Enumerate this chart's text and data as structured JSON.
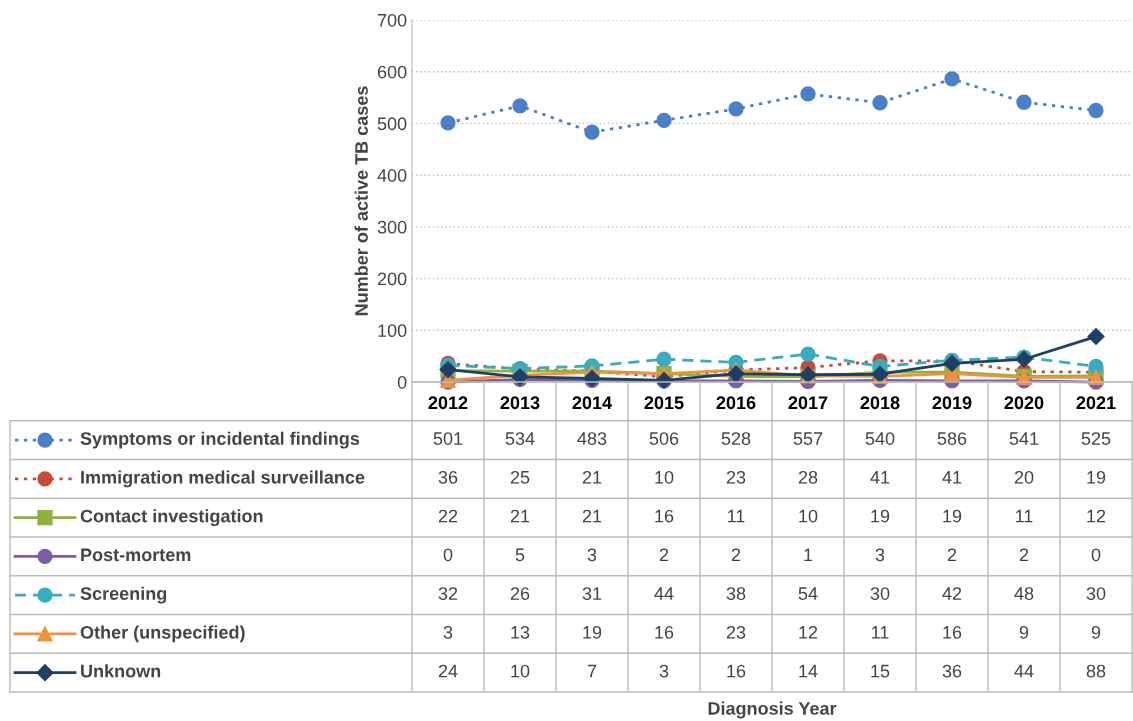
{
  "chart_data": {
    "type": "line",
    "annotations": [
      "Diagnosis Year"
    ],
    "ylabel": "Number of active TB cases",
    "categories": [
      "2012",
      "2013",
      "2014",
      "2015",
      "2016",
      "2017",
      "2018",
      "2019",
      "2020",
      "2021"
    ],
    "ylim": [
      0,
      700
    ],
    "yticks": [
      0,
      100,
      200,
      300,
      400,
      500,
      600,
      700
    ],
    "grid": "y",
    "legend": "bottom",
    "data_labels": true,
    "series": [
      {
        "name": "Symptoms or incidental findings",
        "color": "#4a7fc9",
        "marker": "circle",
        "line_style": "dotted",
        "values": [
          501,
          534,
          483,
          506,
          528,
          557,
          540,
          586,
          541,
          525
        ]
      },
      {
        "name": "Immigration medical surveillance",
        "color": "#c9493a",
        "marker": "circle",
        "line_style": "dotted",
        "values": [
          36,
          25,
          21,
          10,
          23,
          28,
          41,
          41,
          20,
          19
        ]
      },
      {
        "name": "Contact investigation",
        "color": "#8db33a",
        "marker": "square",
        "line_style": "solid",
        "values": [
          22,
          21,
          21,
          16,
          11,
          10,
          19,
          19,
          11,
          12
        ]
      },
      {
        "name": "Post-mortem",
        "color": "#7b5ea7",
        "marker": "circle",
        "line_style": "solid",
        "values": [
          0,
          5,
          3,
          2,
          2,
          1,
          3,
          2,
          2,
          0
        ]
      },
      {
        "name": "Screening",
        "color": "#3aacc0",
        "marker": "circle",
        "line_style": "dashed",
        "values": [
          32,
          26,
          31,
          44,
          38,
          54,
          30,
          42,
          48,
          30
        ]
      },
      {
        "name": "Other (unspecified)",
        "color": "#f0923a",
        "marker": "triangle",
        "line_style": "solid",
        "values": [
          3,
          13,
          19,
          16,
          23,
          12,
          11,
          16,
          9,
          9
        ]
      },
      {
        "name": "Unknown",
        "color": "#1f3f66",
        "marker": "diamond",
        "line_style": "solid",
        "values": [
          24,
          10,
          7,
          3,
          16,
          14,
          15,
          36,
          44,
          88
        ]
      }
    ]
  }
}
